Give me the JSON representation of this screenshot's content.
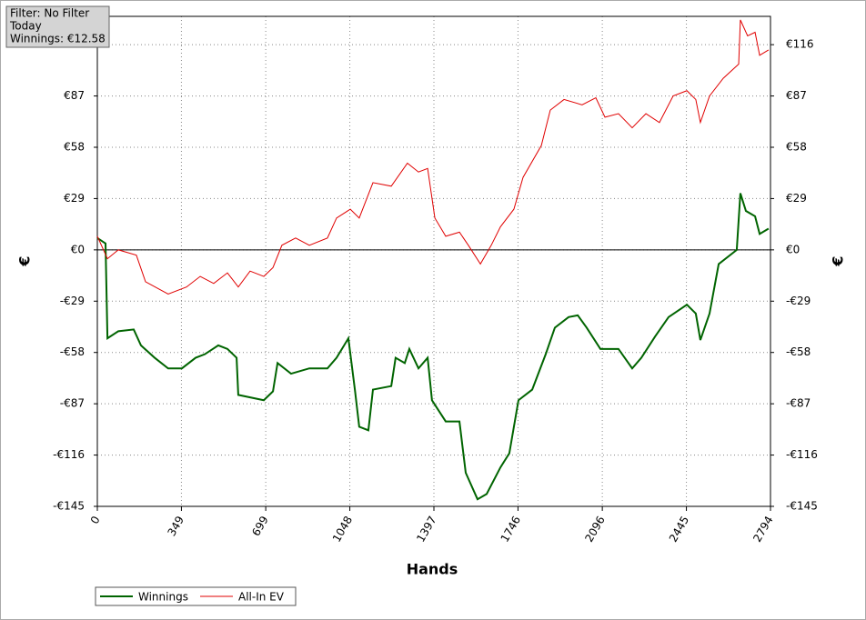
{
  "chart_data": {
    "type": "line",
    "x_label": "Hands",
    "y_label": "€",
    "y2_label": "€",
    "annotations": [
      "Filter: No Filter",
      "Today",
      "Winnings: €12.58"
    ],
    "xlim": [
      0,
      2794
    ],
    "xticks": [
      0,
      349,
      699,
      1048,
      1397,
      1746,
      2096,
      2445,
      2794
    ],
    "ylim": [
      -145,
      132
    ],
    "yticks": [
      {
        "value": -145,
        "label": "-€145"
      },
      {
        "value": -116,
        "label": "-€116"
      },
      {
        "value": -87,
        "label": "-€87"
      },
      {
        "value": -58,
        "label": "-€58"
      },
      {
        "value": -29,
        "label": "-€29"
      },
      {
        "value": 0,
        "label": "€0"
      },
      {
        "value": 29,
        "label": "€29"
      },
      {
        "value": 58,
        "label": "€58"
      },
      {
        "value": 87,
        "label": "€87"
      },
      {
        "value": 116,
        "label": "€116"
      }
    ],
    "y2lim": [
      -145,
      132
    ],
    "y2ticks": [
      {
        "value": -145,
        "label": "-€145"
      },
      {
        "value": -116,
        "label": "-€116"
      },
      {
        "value": -87,
        "label": "-€87"
      },
      {
        "value": -58,
        "label": "-€58"
      },
      {
        "value": -29,
        "label": "-€29"
      },
      {
        "value": 0,
        "label": "€0"
      },
      {
        "value": 29,
        "label": "€29"
      },
      {
        "value": 58,
        "label": "€58"
      },
      {
        "value": 87,
        "label": "€87"
      },
      {
        "value": 116,
        "label": "€116"
      }
    ],
    "grid": true,
    "series": [
      {
        "name": "Winnings",
        "color": "#006400",
        "x": [
          0,
          34,
          42,
          87,
          151,
          181,
          238,
          294,
          351,
          408,
          446,
          502,
          540,
          578,
          585,
          691,
          729,
          748,
          804,
          880,
          955,
          993,
          1042,
          1069,
          1087,
          1125,
          1144,
          1220,
          1238,
          1276,
          1295,
          1333,
          1371,
          1389,
          1446,
          1503,
          1529,
          1578,
          1616,
          1673,
          1710,
          1748,
          1805,
          1861,
          1899,
          1956,
          1994,
          2031,
          2088,
          2163,
          2220,
          2258,
          2315,
          2371,
          2447,
          2484,
          2503,
          2541,
          2579,
          2654,
          2669,
          2692,
          2730,
          2749,
          2786
        ],
        "values": [
          6.7,
          3.6,
          -50,
          -46,
          -45,
          -54,
          -61,
          -67,
          -67,
          -61,
          -59,
          -54,
          -56,
          -61,
          -82,
          -85,
          -80,
          -64,
          -70,
          -67,
          -67,
          -61,
          -50,
          -79,
          -100,
          -102,
          -79,
          -77,
          -61,
          -64,
          -56,
          -67,
          -61,
          -85,
          -97,
          -97,
          -126,
          -141,
          -138,
          -123,
          -115,
          -85,
          -79,
          -59,
          -44,
          -38,
          -37,
          -44,
          -56,
          -56,
          -67,
          -61,
          -49,
          -38,
          -31,
          -36,
          -51,
          -36,
          -8,
          0,
          32,
          22,
          19,
          9,
          12
        ]
      },
      {
        "name": "All-In EV",
        "color": "#e00000",
        "x": [
          0,
          42,
          87,
          162,
          200,
          294,
          370,
          427,
          483,
          540,
          585,
          634,
          691,
          729,
          766,
          823,
          880,
          955,
          993,
          1050,
          1087,
          1144,
          1220,
          1287,
          1333,
          1371,
          1401,
          1446,
          1503,
          1540,
          1590,
          1635,
          1673,
          1729,
          1767,
          1843,
          1880,
          1937,
          2012,
          2069,
          2107,
          2163,
          2220,
          2277,
          2333,
          2390,
          2447,
          2484,
          2503,
          2541,
          2598,
          2662,
          2669,
          2699,
          2730,
          2749,
          2786
        ],
        "values": [
          7.7,
          -5,
          0,
          -3,
          -18,
          -25,
          -21,
          -15,
          -19,
          -13,
          -21,
          -12,
          -15,
          -10,
          2.6,
          6.7,
          2.6,
          6.7,
          18,
          23,
          18,
          38,
          36,
          49,
          44,
          46,
          18,
          7.7,
          10,
          2.6,
          -8,
          2.6,
          13,
          23,
          41,
          59,
          79,
          85,
          82,
          86,
          75,
          77,
          69,
          77,
          72,
          87,
          90,
          85,
          72,
          87,
          97,
          105,
          130,
          121,
          123,
          110,
          113
        ]
      }
    ]
  }
}
